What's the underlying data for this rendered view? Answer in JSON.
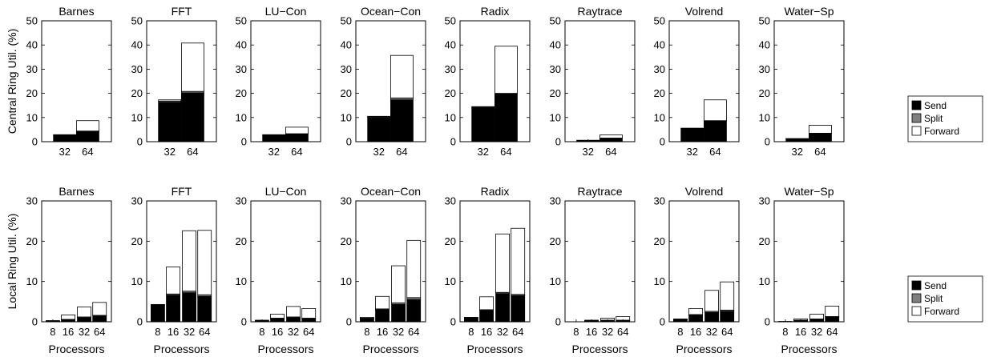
{
  "colors": {
    "send": "#000000",
    "split": "#7f7f7f",
    "forward": "#ffffff"
  },
  "chart_data": [
    {
      "type": "stacked-bar",
      "row": "central",
      "ylabel": "Central Ring Util. (%)",
      "xlabel": "",
      "ylim": [
        0,
        50
      ],
      "yticks": [
        0,
        10,
        20,
        30,
        40,
        50
      ],
      "categories": [
        "32",
        "64"
      ],
      "legend": {
        "position": "right",
        "entries": [
          "Send",
          "Split",
          "Forward"
        ]
      },
      "panels": [
        {
          "title": "Barnes",
          "send": [
            2.8,
            4.2
          ],
          "split": [
            0.1,
            0.2
          ],
          "forward": [
            0.0,
            4.3
          ]
        },
        {
          "title": "FFT",
          "send": [
            16.3,
            20.2
          ],
          "split": [
            0.5,
            0.6
          ],
          "forward": [
            0.5,
            20.0
          ]
        },
        {
          "title": "LU−Con",
          "send": [
            2.8,
            3.1
          ],
          "split": [
            0.1,
            0.2
          ],
          "forward": [
            0.0,
            2.7
          ]
        },
        {
          "title": "Ocean−Con",
          "send": [
            10.0,
            17.3
          ],
          "split": [
            0.4,
            0.8
          ],
          "forward": [
            0.1,
            17.6
          ]
        },
        {
          "title": "Radix",
          "send": [
            14.0,
            19.8
          ],
          "split": [
            0.3,
            0.2
          ],
          "forward": [
            0.2,
            19.5
          ]
        },
        {
          "title": "Raytrace",
          "send": [
            0.5,
            1.3
          ],
          "split": [
            0.1,
            0.2
          ],
          "forward": [
            0.0,
            1.3
          ]
        },
        {
          "title": "Volrend",
          "send": [
            5.5,
            8.5
          ],
          "split": [
            0.1,
            0.2
          ],
          "forward": [
            0.0,
            8.6
          ]
        },
        {
          "title": "Water−Sp",
          "send": [
            1.2,
            3.3
          ],
          "split": [
            0.1,
            0.2
          ],
          "forward": [
            0.0,
            3.3
          ]
        }
      ]
    },
    {
      "type": "stacked-bar",
      "row": "local",
      "ylabel": "Local Ring Util. (%)",
      "xlabel": "Processors",
      "ylim": [
        0,
        30
      ],
      "yticks": [
        0,
        10,
        20,
        30
      ],
      "categories": [
        "8",
        "16",
        "32",
        "64"
      ],
      "legend": {
        "position": "right",
        "entries": [
          "Send",
          "Split",
          "Forward"
        ]
      },
      "panels": [
        {
          "title": "Barnes",
          "send": [
            0.3,
            0.5,
            1.0,
            1.4
          ],
          "split": [
            0.0,
            0.1,
            0.2,
            0.2
          ],
          "forward": [
            0.0,
            1.1,
            2.5,
            3.2
          ]
        },
        {
          "title": "FFT",
          "send": [
            4.2,
            6.6,
            7.2,
            6.3
          ],
          "split": [
            0.1,
            0.3,
            0.4,
            0.4
          ],
          "forward": [
            0.0,
            6.7,
            15.0,
            16.0
          ]
        },
        {
          "title": "LU−Con",
          "send": [
            0.4,
            0.8,
            1.0,
            0.8
          ],
          "split": [
            0.0,
            0.1,
            0.2,
            0.1
          ],
          "forward": [
            0.0,
            1.0,
            2.6,
            2.4
          ]
        },
        {
          "title": "Ocean−Con",
          "send": [
            0.8,
            3.0,
            4.3,
            5.5
          ],
          "split": [
            0.1,
            0.2,
            0.4,
            0.5
          ],
          "forward": [
            0.2,
            3.1,
            9.2,
            14.2
          ]
        },
        {
          "title": "Radix",
          "send": [
            1.0,
            2.8,
            7.0,
            6.5
          ],
          "split": [
            0.1,
            0.2,
            0.3,
            0.3
          ],
          "forward": [
            0.0,
            3.2,
            14.5,
            16.4
          ]
        },
        {
          "title": "Raytrace",
          "send": [
            0.0,
            0.2,
            0.3,
            0.3
          ],
          "split": [
            0.0,
            0.1,
            0.1,
            0.1
          ],
          "forward": [
            0.0,
            0.1,
            0.5,
            0.9
          ]
        },
        {
          "title": "Volrend",
          "send": [
            0.5,
            1.6,
            2.3,
            2.6
          ],
          "split": [
            0.1,
            0.2,
            0.3,
            0.3
          ],
          "forward": [
            0.1,
            1.5,
            5.2,
            7.0
          ]
        },
        {
          "title": "Water−Sp",
          "send": [
            0.1,
            0.3,
            0.6,
            1.2
          ],
          "split": [
            0.0,
            0.1,
            0.1,
            0.1
          ],
          "forward": [
            0.0,
            0.3,
            1.2,
            2.6
          ]
        }
      ]
    }
  ]
}
